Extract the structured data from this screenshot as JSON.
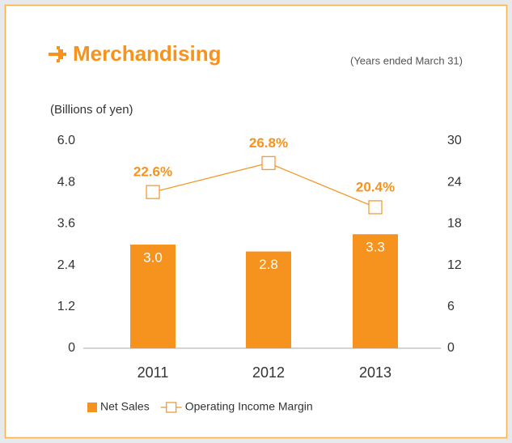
{
  "chart_data": {
    "type": "bar",
    "title": "Merchandising",
    "subtitle": "(Years ended March 31)",
    "y_label": "(Billions of yen)",
    "categories": [
      "2011",
      "2012",
      "2013"
    ],
    "series": [
      {
        "name": "Net Sales",
        "type": "bar",
        "color": "#f5931e",
        "values": [
          3.0,
          2.8,
          3.3
        ],
        "value_labels": [
          "3.0",
          "2.8",
          "3.3"
        ]
      },
      {
        "name": "Operating Income Margin",
        "type": "line",
        "axis": "y2",
        "color": "#f5931e",
        "values": [
          22.6,
          26.8,
          20.4
        ],
        "value_labels": [
          "22.6%",
          "26.8%",
          "20.4%"
        ]
      }
    ],
    "ylim": [
      0,
      6
    ],
    "yticks": [
      0,
      1.2,
      2.4,
      3.6,
      4.8,
      {
        "value": 6,
        "label": "6.0"
      }
    ],
    "y2lim": [
      0,
      30
    ],
    "y2ticks": [
      0,
      6,
      12,
      18,
      24,
      30
    ],
    "grid": false,
    "legend": "bottom-left"
  }
}
